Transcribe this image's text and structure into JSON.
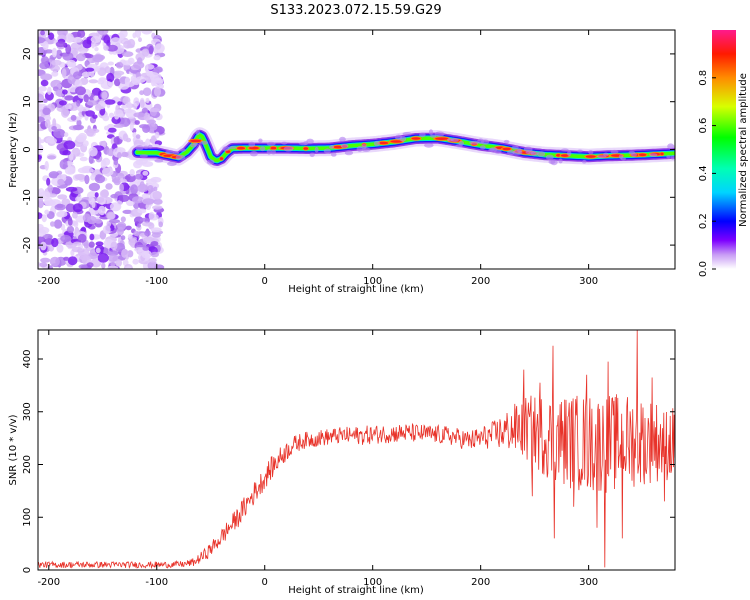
{
  "title": "S133.2023.072.15.59.G29",
  "chart_data": [
    {
      "type": "heatmap",
      "xlabel": "Height of straight line (km)",
      "ylabel": "Frequency (Hz)",
      "xlim": [
        -210,
        380
      ],
      "ylim": [
        -25,
        25
      ],
      "x_ticks": [
        -200,
        -100,
        0,
        100,
        200,
        300
      ],
      "y_ticks": [
        -20,
        -10,
        0,
        10,
        20
      ],
      "grid": false,
      "noise_region_x": [
        -210,
        -100
      ],
      "ridge_trace": {
        "x": [
          -118,
          -110,
          -100,
          -90,
          -80,
          -72,
          -66,
          -62,
          -59,
          -55,
          -50,
          -45,
          -40,
          -35,
          -30,
          -20,
          -10,
          0,
          20,
          40,
          60,
          80,
          100,
          120,
          140,
          160,
          180,
          200,
          220,
          240,
          260,
          280,
          300,
          320,
          340,
          360,
          380
        ],
        "y": [
          -0.6,
          -0.7,
          -0.7,
          -1.2,
          -1.7,
          -0.5,
          1.0,
          2.6,
          3.2,
          1.3,
          -1.5,
          -2.4,
          -1.9,
          -0.6,
          0.2,
          0.3,
          0.3,
          0.3,
          0.3,
          0.2,
          0.3,
          0.8,
          1.1,
          1.6,
          2.3,
          2.4,
          1.7,
          0.9,
          0.3,
          -0.6,
          -1.1,
          -1.3,
          -1.5,
          -1.3,
          -1.2,
          -1.0,
          -0.8
        ]
      },
      "colorbar": {
        "label": "Normalized spectral amplitude",
        "range": [
          0.0,
          1.0
        ],
        "ticks": [
          0.0,
          0.2,
          0.4,
          0.6,
          0.8
        ],
        "tick_labels": [
          "0.0",
          "0.2",
          "0.4",
          "0.6",
          "0.8"
        ]
      }
    },
    {
      "type": "line",
      "xlabel": "Height of straight line (km)",
      "ylabel": "SNR (10 * v/v)",
      "xlim": [
        -210,
        380
      ],
      "ylim": [
        0,
        455
      ],
      "x_ticks": [
        -200,
        -100,
        0,
        100,
        200,
        300
      ],
      "y_ticks": [
        0,
        100,
        200,
        300,
        400
      ],
      "grid": false,
      "series": [
        {
          "color": "#e8332a",
          "x": [
            -210,
            -180,
            -150,
            -120,
            -90,
            -75,
            -65,
            -55,
            -45,
            -35,
            -25,
            -15,
            -5,
            5,
            15,
            25,
            35,
            50,
            70,
            90,
            110,
            130,
            150,
            170,
            190,
            210,
            225,
            240,
            260,
            280,
            300,
            320,
            340,
            360,
            380
          ],
          "values": [
            10,
            10,
            10,
            10,
            10,
            11,
            15,
            30,
            50,
            75,
            100,
            130,
            160,
            190,
            215,
            235,
            245,
            250,
            255,
            255,
            258,
            260,
            258,
            255,
            245,
            255,
            265,
            270,
            255,
            245,
            240,
            240,
            245,
            245,
            240
          ],
          "spread": [
            6,
            6,
            6,
            6,
            6,
            6,
            8,
            12,
            15,
            18,
            20,
            22,
            22,
            22,
            20,
            18,
            16,
            16,
            16,
            18,
            18,
            18,
            18,
            18,
            20,
            25,
            40,
            60,
            80,
            90,
            95,
            95,
            90,
            80,
            70
          ],
          "extremes": [
            {
              "x": 240,
              "y": 380
            },
            {
              "x": 248,
              "y": 140
            },
            {
              "x": 255,
              "y": 355
            },
            {
              "x": 268,
              "y": 60
            },
            {
              "x": 267,
              "y": 425
            },
            {
              "x": 286,
              "y": 120
            },
            {
              "x": 298,
              "y": 370
            },
            {
              "x": 308,
              "y": 80
            },
            {
              "x": 315,
              "y": 5
            },
            {
              "x": 318,
              "y": 395
            },
            {
              "x": 331,
              "y": 60
            },
            {
              "x": 345,
              "y": 455
            },
            {
              "x": 353,
              "y": 190
            },
            {
              "x": 359,
              "y": 365
            },
            {
              "x": 370,
              "y": 130
            }
          ]
        }
      ]
    }
  ]
}
